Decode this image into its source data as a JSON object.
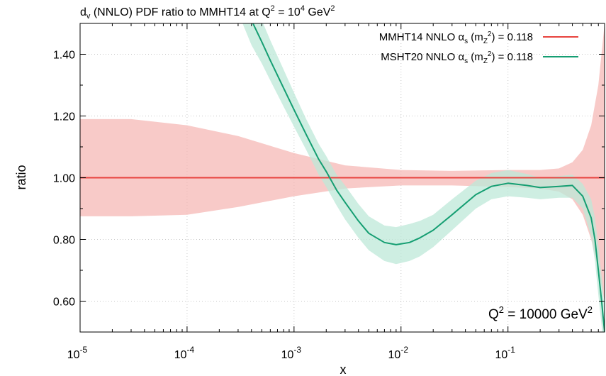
{
  "chart_data": {
    "type": "line",
    "title": "(NNLO) PDF ratio to MMHT14 at Q",
    "title_parts": {
      "pdf": "d",
      "pdf_sub": "v",
      "prefix": " (NNLO) PDF ratio to MMHT14 at Q",
      "q_exp": "2",
      "mid": " = 10",
      "val_exp": "4",
      "unit": " GeV",
      "unit_exp": "2"
    },
    "xlabel": "x",
    "ylabel": "ratio",
    "xscale": "log",
    "xlim": [
      1e-05,
      0.8
    ],
    "ylim": [
      0.5,
      1.5
    ],
    "grid": true,
    "x_ticks": [
      {
        "value": 1e-05,
        "base": "10",
        "exp": "-5"
      },
      {
        "value": 0.0001,
        "base": "10",
        "exp": "-4"
      },
      {
        "value": 0.001,
        "base": "10",
        "exp": "-3"
      },
      {
        "value": 0.01,
        "base": "10",
        "exp": "-2"
      },
      {
        "value": 0.1,
        "base": "10",
        "exp": "-1"
      }
    ],
    "y_ticks": [
      {
        "value": 0.6,
        "label": "0.60"
      },
      {
        "value": 0.8,
        "label": "0.80"
      },
      {
        "value": 1.0,
        "label": "1.00"
      },
      {
        "value": 1.2,
        "label": "1.20"
      },
      {
        "value": 1.4,
        "label": "1.40"
      }
    ],
    "legend_position": "top-right",
    "annotation": {
      "prefix": "Q",
      "exp": "2",
      "text": " = 10000 GeV",
      "unit_exp": "2",
      "position": "bottom-right"
    },
    "series": [
      {
        "name": "MMHT14 NNLO αs (mZ²) = 0.118",
        "legend": {
          "p1": "MMHT14 NNLO α",
          "p1_sub": "s",
          "p2": " (m",
          "p2_sub": "Z",
          "p2_exp": "2",
          "p3": ") = 0.118"
        },
        "color": "#e8433e",
        "band_color": "#f5b8b5",
        "x": [
          1e-05,
          3e-05,
          0.0001,
          0.0003,
          0.001,
          0.003,
          0.01,
          0.03,
          0.1,
          0.2,
          0.3,
          0.4,
          0.5,
          0.6,
          0.7,
          0.8
        ],
        "y": [
          1.0,
          1.0,
          1.0,
          1.0,
          1.0,
          1.0,
          1.0,
          1.0,
          1.0,
          1.0,
          1.0,
          1.0,
          1.0,
          1.0,
          1.0,
          1.0
        ],
        "upper": [
          1.19,
          1.19,
          1.17,
          1.135,
          1.08,
          1.04,
          1.025,
          1.022,
          1.025,
          1.025,
          1.03,
          1.05,
          1.09,
          1.17,
          1.3,
          1.5
        ],
        "lower": [
          0.875,
          0.875,
          0.88,
          0.905,
          0.94,
          0.965,
          0.975,
          0.975,
          0.97,
          0.965,
          0.955,
          0.93,
          0.88,
          0.8,
          0.7,
          0.6
        ]
      },
      {
        "name": "MSHT20 NNLO αs (mZ²) = 0.118",
        "legend": {
          "p1": "MSHT20 NNLO α",
          "p1_sub": "s",
          "p2": " (m",
          "p2_sub": "Z",
          "p2_exp": "2",
          "p3": ") = 0.118"
        },
        "color": "#159e72",
        "band_color": "#bde8d8",
        "x": [
          0.00033,
          0.0004,
          0.0005,
          0.0006,
          0.0008,
          0.001,
          0.0013,
          0.0017,
          0.002,
          0.0025,
          0.003,
          0.004,
          0.005,
          0.007,
          0.009,
          0.012,
          0.015,
          0.02,
          0.03,
          0.05,
          0.07,
          0.1,
          0.15,
          0.2,
          0.3,
          0.4,
          0.5,
          0.6,
          0.65,
          0.7,
          0.75,
          0.8
        ],
        "y": [
          1.58,
          1.51,
          1.44,
          1.38,
          1.29,
          1.22,
          1.14,
          1.06,
          1.02,
          0.96,
          0.92,
          0.86,
          0.82,
          0.79,
          0.783,
          0.79,
          0.805,
          0.83,
          0.88,
          0.945,
          0.972,
          0.982,
          0.975,
          0.968,
          0.972,
          0.975,
          0.94,
          0.87,
          0.8,
          0.7,
          0.6,
          0.5
        ],
        "upper": [
          1.66,
          1.59,
          1.51,
          1.445,
          1.35,
          1.275,
          1.19,
          1.11,
          1.07,
          1.01,
          0.975,
          0.915,
          0.875,
          0.845,
          0.84,
          0.85,
          0.86,
          0.88,
          0.93,
          0.99,
          1.015,
          1.025,
          1.012,
          1.0,
          1.005,
          1.01,
          0.98,
          0.93,
          0.87,
          0.78,
          0.68,
          0.58
        ],
        "lower": [
          1.5,
          1.43,
          1.37,
          1.315,
          1.23,
          1.165,
          1.09,
          1.01,
          0.97,
          0.91,
          0.865,
          0.805,
          0.765,
          0.73,
          0.72,
          0.73,
          0.745,
          0.775,
          0.83,
          0.9,
          0.93,
          0.94,
          0.935,
          0.93,
          0.935,
          0.935,
          0.9,
          0.81,
          0.73,
          0.62,
          0.52,
          0.42
        ]
      }
    ]
  }
}
